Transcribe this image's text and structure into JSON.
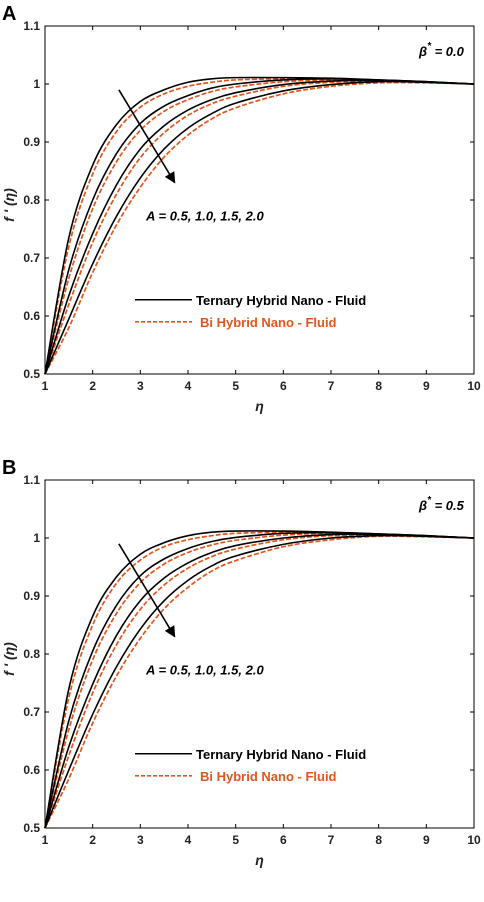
{
  "chart_data": [
    {
      "type": "line",
      "panel_label": "A",
      "xlabel": "η",
      "ylabel": "f ' (η)",
      "xlim": [
        1,
        10
      ],
      "ylim": [
        0.5,
        1.1
      ],
      "xticks": [
        1,
        2,
        3,
        4,
        5,
        6,
        7,
        8,
        9,
        10
      ],
      "yticks": [
        0.5,
        0.6,
        0.7,
        0.8,
        0.9,
        1,
        1.1
      ],
      "parameter_label": "β",
      "parameter_superscript": "*",
      "parameter_value": " = 0.0",
      "arrow_label": "A = 0.5, 1.0, 1.5, 2.0",
      "legend": [
        {
          "label": "Ternary Hybrid Nano - Fluid",
          "color": "#000000",
          "style": "solid"
        },
        {
          "label": "Bi Hybrid Nano - Fluid",
          "color": "#e2561c",
          "style": "dashed"
        }
      ],
      "series": [
        {
          "group": "ternary",
          "A": 0.5,
          "x": [
            1,
            1.5,
            2,
            2.5,
            3,
            3.5,
            4,
            4.5,
            5,
            6,
            7,
            8,
            9,
            10
          ],
          "y": [
            0.5,
            0.735,
            0.86,
            0.93,
            0.97,
            0.99,
            1.003,
            1.009,
            1.011,
            1.011,
            1.01,
            1.007,
            1.004,
            1.0
          ]
        },
        {
          "group": "bi",
          "A": 0.5,
          "x": [
            1,
            1.5,
            2,
            2.5,
            3,
            3.5,
            4,
            4.5,
            5,
            6,
            7,
            8,
            9,
            10
          ],
          "y": [
            0.5,
            0.72,
            0.845,
            0.918,
            0.96,
            0.983,
            0.996,
            1.003,
            1.007,
            1.009,
            1.009,
            1.006,
            1.003,
            1.0
          ]
        },
        {
          "group": "ternary",
          "A": 1.0,
          "x": [
            1,
            1.5,
            2,
            2.5,
            3,
            3.5,
            4,
            4.5,
            5,
            6,
            7,
            8,
            9,
            10
          ],
          "y": [
            0.5,
            0.68,
            0.8,
            0.88,
            0.932,
            0.962,
            0.98,
            0.993,
            1.0,
            1.007,
            1.009,
            1.007,
            1.004,
            1.0
          ]
        },
        {
          "group": "bi",
          "A": 1.0,
          "x": [
            1,
            1.5,
            2,
            2.5,
            3,
            3.5,
            4,
            4.5,
            5,
            6,
            7,
            8,
            9,
            10
          ],
          "y": [
            0.5,
            0.665,
            0.785,
            0.866,
            0.92,
            0.953,
            0.973,
            0.987,
            0.995,
            1.004,
            1.007,
            1.006,
            1.003,
            1.0
          ]
        },
        {
          "group": "ternary",
          "A": 1.5,
          "x": [
            1,
            1.5,
            2,
            2.5,
            3,
            3.5,
            4,
            4.5,
            5,
            6,
            7,
            8,
            9,
            10
          ],
          "y": [
            0.5,
            0.635,
            0.742,
            0.826,
            0.888,
            0.928,
            0.955,
            0.973,
            0.985,
            0.999,
            1.005,
            1.006,
            1.003,
            1.0
          ]
        },
        {
          "group": "bi",
          "A": 1.5,
          "x": [
            1,
            1.5,
            2,
            2.5,
            3,
            3.5,
            4,
            4.5,
            5,
            6,
            7,
            8,
            9,
            10
          ],
          "y": [
            0.5,
            0.62,
            0.727,
            0.81,
            0.873,
            0.916,
            0.946,
            0.966,
            0.979,
            0.996,
            1.003,
            1.005,
            1.003,
            1.0
          ]
        },
        {
          "group": "ternary",
          "A": 2.0,
          "x": [
            1,
            1.5,
            2,
            2.5,
            3,
            3.5,
            4,
            4.5,
            5,
            6,
            7,
            8,
            9,
            10
          ],
          "y": [
            0.5,
            0.595,
            0.69,
            0.772,
            0.838,
            0.888,
            0.924,
            0.949,
            0.967,
            0.988,
            0.999,
            1.004,
            1.003,
            1.0
          ]
        },
        {
          "group": "bi",
          "A": 2.0,
          "x": [
            1,
            1.5,
            2,
            2.5,
            3,
            3.5,
            4,
            4.5,
            5,
            6,
            7,
            8,
            9,
            10
          ],
          "y": [
            0.5,
            0.58,
            0.675,
            0.757,
            0.822,
            0.874,
            0.912,
            0.94,
            0.959,
            0.983,
            0.996,
            1.002,
            1.002,
            1.0
          ]
        }
      ]
    },
    {
      "type": "line",
      "panel_label": "B",
      "xlabel": "η",
      "ylabel": "f ' (η)",
      "xlim": [
        1,
        10
      ],
      "ylim": [
        0.5,
        1.1
      ],
      "xticks": [
        1,
        2,
        3,
        4,
        5,
        6,
        7,
        8,
        9,
        10
      ],
      "yticks": [
        0.5,
        0.6,
        0.7,
        0.8,
        0.9,
        1,
        1.1
      ],
      "parameter_label": "β",
      "parameter_superscript": "*",
      "parameter_value": " = 0.5",
      "arrow_label": "A = 0.5, 1.0, 1.5, 2.0",
      "legend": [
        {
          "label": "Ternary Hybrid Nano - Fluid",
          "color": "#000000",
          "style": "solid"
        },
        {
          "label": "Bi Hybrid Nano - Fluid",
          "color": "#e2561c",
          "style": "dashed"
        }
      ],
      "series": [
        {
          "group": "ternary",
          "A": 0.5,
          "x": [
            1,
            1.5,
            2,
            2.5,
            3,
            3.5,
            4,
            4.5,
            5,
            6,
            7,
            8,
            9,
            10
          ],
          "y": [
            0.5,
            0.74,
            0.865,
            0.933,
            0.972,
            0.992,
            1.004,
            1.01,
            1.012,
            1.012,
            1.01,
            1.007,
            1.004,
            1.0
          ]
        },
        {
          "group": "bi",
          "A": 0.5,
          "x": [
            1,
            1.5,
            2,
            2.5,
            3,
            3.5,
            4,
            4.5,
            5,
            6,
            7,
            8,
            9,
            10
          ],
          "y": [
            0.5,
            0.725,
            0.85,
            0.922,
            0.962,
            0.985,
            0.997,
            1.004,
            1.008,
            1.01,
            1.009,
            1.006,
            1.003,
            1.0
          ]
        },
        {
          "group": "ternary",
          "A": 1.0,
          "x": [
            1,
            1.5,
            2,
            2.5,
            3,
            3.5,
            4,
            4.5,
            5,
            6,
            7,
            8,
            9,
            10
          ],
          "y": [
            0.5,
            0.685,
            0.805,
            0.884,
            0.935,
            0.964,
            0.982,
            0.994,
            1.001,
            1.008,
            1.009,
            1.007,
            1.004,
            1.0
          ]
        },
        {
          "group": "bi",
          "A": 1.0,
          "x": [
            1,
            1.5,
            2,
            2.5,
            3,
            3.5,
            4,
            4.5,
            5,
            6,
            7,
            8,
            9,
            10
          ],
          "y": [
            0.5,
            0.67,
            0.79,
            0.87,
            0.923,
            0.955,
            0.975,
            0.988,
            0.996,
            1.005,
            1.008,
            1.006,
            1.003,
            1.0
          ]
        },
        {
          "group": "ternary",
          "A": 1.5,
          "x": [
            1,
            1.5,
            2,
            2.5,
            3,
            3.5,
            4,
            4.5,
            5,
            6,
            7,
            8,
            9,
            10
          ],
          "y": [
            0.5,
            0.64,
            0.748,
            0.832,
            0.892,
            0.931,
            0.957,
            0.975,
            0.987,
            1.0,
            1.006,
            1.006,
            1.003,
            1.0
          ]
        },
        {
          "group": "bi",
          "A": 1.5,
          "x": [
            1,
            1.5,
            2,
            2.5,
            3,
            3.5,
            4,
            4.5,
            5,
            6,
            7,
            8,
            9,
            10
          ],
          "y": [
            0.5,
            0.625,
            0.733,
            0.816,
            0.877,
            0.919,
            0.948,
            0.968,
            0.981,
            0.997,
            1.004,
            1.005,
            1.003,
            1.0
          ]
        },
        {
          "group": "ternary",
          "A": 2.0,
          "x": [
            1,
            1.5,
            2,
            2.5,
            3,
            3.5,
            4,
            4.5,
            5,
            6,
            7,
            8,
            9,
            10
          ],
          "y": [
            0.5,
            0.6,
            0.696,
            0.778,
            0.843,
            0.892,
            0.927,
            0.952,
            0.969,
            0.989,
            1.0,
            1.004,
            1.003,
            1.0
          ]
        },
        {
          "group": "bi",
          "A": 2.0,
          "x": [
            1,
            1.5,
            2,
            2.5,
            3,
            3.5,
            4,
            4.5,
            5,
            6,
            7,
            8,
            9,
            10
          ],
          "y": [
            0.5,
            0.585,
            0.681,
            0.762,
            0.827,
            0.878,
            0.915,
            0.943,
            0.961,
            0.985,
            0.997,
            1.003,
            1.002,
            1.0
          ]
        }
      ]
    }
  ]
}
